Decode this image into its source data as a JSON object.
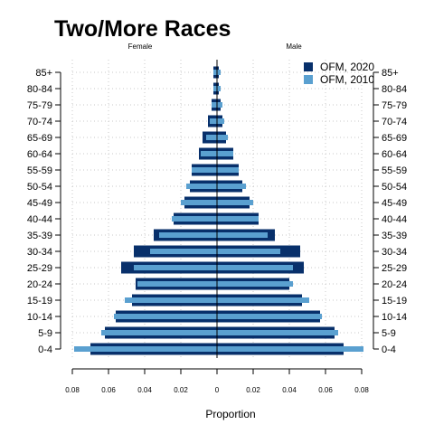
{
  "chart_data": {
    "type": "bar",
    "orientation": "horizontal",
    "title": "Two/More Races",
    "left_side_label": "Female",
    "right_side_label": "Male",
    "xlabel": "Proportion",
    "xlim": [
      -0.08,
      0.08
    ],
    "x_ticks": [
      "0.08",
      "0.06",
      "0.04",
      "0.02",
      "0",
      "0.02",
      "0.04",
      "0.06",
      "0.08"
    ],
    "grid": true,
    "legend_position": "top-right",
    "categories": [
      "0-4",
      "5-9",
      "10-14",
      "15-19",
      "20-24",
      "25-29",
      "30-34",
      "35-39",
      "40-44",
      "45-49",
      "50-54",
      "55-59",
      "60-64",
      "65-69",
      "70-74",
      "75-79",
      "80-84",
      "85+"
    ],
    "series": [
      {
        "name": "OFM, 2020",
        "color": "#08306b",
        "female": [
          0.07,
          0.062,
          0.056,
          0.047,
          0.045,
          0.053,
          0.046,
          0.035,
          0.024,
          0.018,
          0.015,
          0.014,
          0.01,
          0.008,
          0.005,
          0.003,
          0.002,
          0.002
        ],
        "male": [
          0.07,
          0.065,
          0.057,
          0.047,
          0.04,
          0.048,
          0.046,
          0.032,
          0.023,
          0.018,
          0.014,
          0.012,
          0.009,
          0.005,
          0.003,
          0.002,
          0.001,
          0.001
        ]
      },
      {
        "name": "OFM, 2010",
        "color": "#5aa0d0",
        "female": [
          0.079,
          0.064,
          0.057,
          0.051,
          0.044,
          0.046,
          0.037,
          0.032,
          0.025,
          0.02,
          0.017,
          0.014,
          0.009,
          0.006,
          0.004,
          0.003,
          0.002,
          0.002
        ],
        "male": [
          0.081,
          0.067,
          0.058,
          0.051,
          0.042,
          0.042,
          0.035,
          0.028,
          0.023,
          0.02,
          0.016,
          0.012,
          0.009,
          0.006,
          0.004,
          0.003,
          0.002,
          0.002
        ]
      }
    ]
  }
}
